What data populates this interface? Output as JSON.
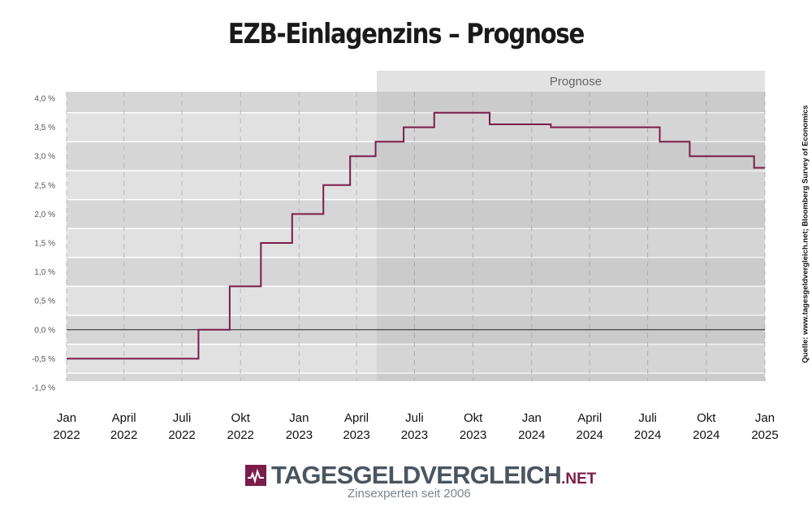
{
  "title": "EZB-Einlagenzins – Prognose",
  "forecast_label": "Prognose",
  "source": "Quelle: www.tagesgeldvergleich.net; Bloomberg Survey of Economics",
  "logo": {
    "icon": "chart-line-icon",
    "name": "TAGESGELDVERGLEICH",
    "suffix": ".NET",
    "tagline": "Zinsexperten seit 2006",
    "colors": {
      "brand": "#7b1d4a",
      "text": "#4a5560"
    }
  },
  "chart_data": {
    "type": "line",
    "title": "EZB-Einlagenzins – Prognose",
    "step": true,
    "x_ticks": [
      {
        "month": "Jan",
        "year": "2022"
      },
      {
        "month": "April",
        "year": "2022"
      },
      {
        "month": "Juli",
        "year": "2022"
      },
      {
        "month": "Okt",
        "year": "2022"
      },
      {
        "month": "Jan",
        "year": "2023"
      },
      {
        "month": "April",
        "year": "2023"
      },
      {
        "month": "Juli",
        "year": "2023"
      },
      {
        "month": "Okt",
        "year": "2023"
      },
      {
        "month": "Jan",
        "year": "2024"
      },
      {
        "month": "April",
        "year": "2024"
      },
      {
        "month": "Juli",
        "year": "2024"
      },
      {
        "month": "Okt",
        "year": "2024"
      },
      {
        "month": "Jan",
        "year": "2025"
      }
    ],
    "y_ticks": [
      "4,0 %",
      "3,5 %",
      "3,0 %",
      "2,5 %",
      "2,0 %",
      "1,5 %",
      "1,0 %",
      "0,5 %",
      "0,0 %",
      "-0,5 %",
      "-1,0 %"
    ],
    "ylim": [
      -1.0,
      4.0
    ],
    "xlim": [
      "2022-01-01",
      "2025-01-01"
    ],
    "forecast_start": "2023-05-01",
    "series": [
      {
        "color": "#7b1d4a",
        "points": [
          {
            "x": "2022-01-01",
            "y": -0.5
          },
          {
            "x": "2022-07-27",
            "y": 0.0
          },
          {
            "x": "2022-09-14",
            "y": 0.75
          },
          {
            "x": "2022-11-02",
            "y": 1.5
          },
          {
            "x": "2022-12-21",
            "y": 2.0
          },
          {
            "x": "2023-02-08",
            "y": 2.5
          },
          {
            "x": "2023-03-22",
            "y": 3.0
          },
          {
            "x": "2023-05-01",
            "y": 3.25
          },
          {
            "x": "2023-06-14",
            "y": 3.5
          },
          {
            "x": "2023-08-01",
            "y": 3.75
          },
          {
            "x": "2023-10-27",
            "y": 3.55
          },
          {
            "x": "2024-01-31",
            "y": 3.5
          },
          {
            "x": "2024-07-20",
            "y": 3.25
          },
          {
            "x": "2024-09-05",
            "y": 3.0
          },
          {
            "x": "2024-12-15",
            "y": 2.8
          },
          {
            "x": "2025-01-01",
            "y": 2.8
          }
        ]
      }
    ]
  }
}
